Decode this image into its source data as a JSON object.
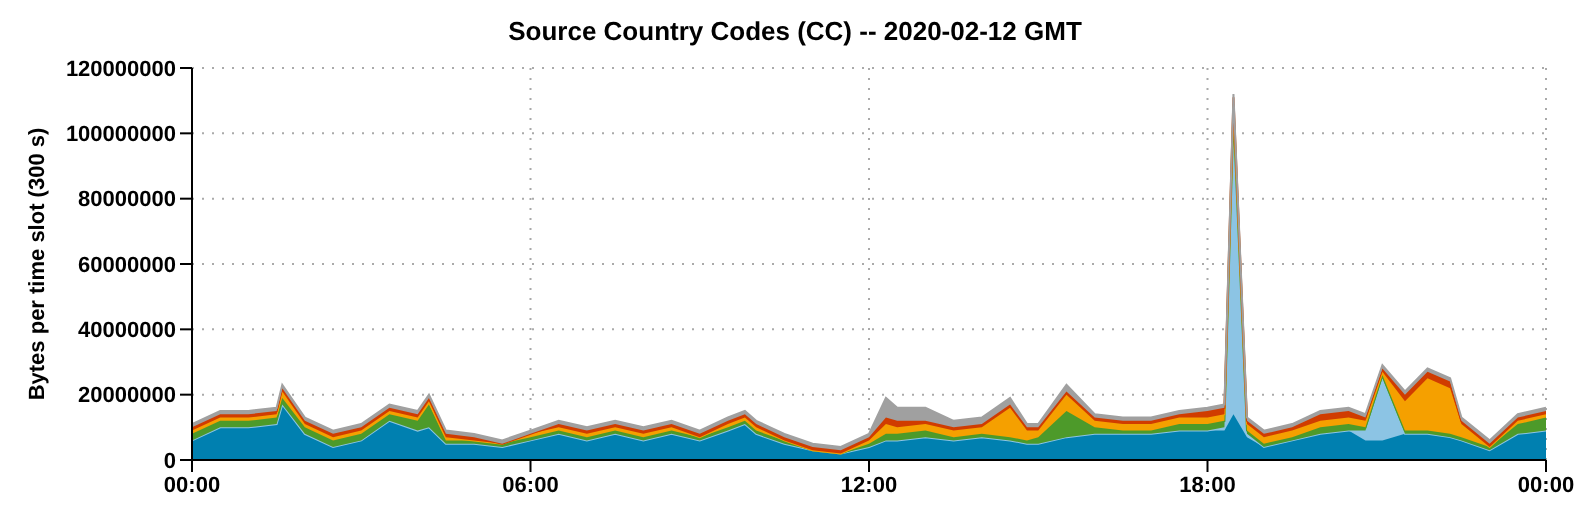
{
  "chart_data": {
    "type": "area",
    "title": "Source Country Codes (CC) -- 2020-02-12 GMT",
    "ylabel": "Bytes per time slot (300 s)",
    "stacked": true,
    "grid": true,
    "x": [
      0,
      0.5,
      1,
      1.5,
      1.6,
      2,
      2.5,
      3,
      3.5,
      4,
      4.2,
      4.5,
      5,
      5.5,
      6,
      6.5,
      7,
      7.5,
      8,
      8.5,
      9,
      9.5,
      9.8,
      10,
      10.5,
      11,
      11.5,
      12,
      12.3,
      12.5,
      13,
      13.5,
      14,
      14.5,
      14.8,
      15,
      15.5,
      16,
      16.5,
      17,
      17.5,
      18,
      18.3,
      18.46,
      18.7,
      19,
      19.5,
      20,
      20.5,
      20.8,
      21.1,
      21.5,
      21.9,
      22.3,
      22.5,
      23,
      23.5,
      24
    ],
    "xlim": [
      0,
      24
    ],
    "xticks": [
      {
        "value": 0,
        "label": "00:00"
      },
      {
        "value": 6,
        "label": "06:00"
      },
      {
        "value": 12,
        "label": "12:00"
      },
      {
        "value": 18,
        "label": "18:00"
      },
      {
        "value": 24,
        "label": "00:00"
      }
    ],
    "ylim": [
      0,
      120000000
    ],
    "yticks": [
      0,
      20000000,
      40000000,
      60000000,
      80000000,
      100000000,
      120000000
    ],
    "series": [
      {
        "color": "#0080b0",
        "values": [
          6000000,
          10000000,
          10000000,
          11000000,
          17000000,
          8000000,
          4000000,
          6000000,
          12000000,
          9000000,
          10000000,
          5000000,
          5000000,
          4000000,
          6000000,
          8000000,
          6000000,
          8000000,
          6000000,
          8000000,
          6000000,
          9000000,
          11000000,
          8000000,
          5000000,
          3000000,
          2000000,
          4000000,
          6000000,
          6000000,
          7000000,
          6000000,
          7000000,
          6000000,
          5000000,
          5000000,
          7000000,
          8000000,
          8000000,
          8000000,
          9000000,
          9000000,
          9000000,
          14000000,
          7000000,
          4000000,
          6000000,
          8000000,
          9000000,
          6000000,
          6000000,
          8000000,
          8000000,
          7000000,
          6000000,
          3000000,
          8000000,
          9000000
        ]
      },
      {
        "color": "#8cc4e4",
        "values": [
          0,
          0,
          0,
          0,
          0,
          0,
          0,
          0,
          0,
          0,
          0,
          0,
          0,
          0,
          0,
          0,
          0,
          0,
          0,
          0,
          0,
          0,
          0,
          0,
          0,
          0,
          0,
          0,
          0,
          0,
          0,
          0,
          0,
          0,
          0,
          0,
          0,
          0,
          0,
          0,
          0,
          0,
          1000000,
          90000000,
          1000000,
          0,
          0,
          0,
          0,
          3000000,
          19000000,
          0,
          0,
          0,
          0,
          0,
          0,
          0
        ]
      },
      {
        "color": "#4d9a2a",
        "values": [
          2000000,
          2000000,
          2000000,
          2000000,
          2000000,
          2000000,
          2000000,
          2000000,
          2000000,
          3000000,
          7000000,
          1000000,
          1000000,
          1000000,
          1000000,
          1000000,
          1000000,
          1000000,
          1000000,
          1000000,
          1000000,
          1000000,
          1000000,
          1000000,
          1000000,
          0,
          0,
          1000000,
          2000000,
          2000000,
          2000000,
          1000000,
          1000000,
          1000000,
          1000000,
          2000000,
          8000000,
          2000000,
          1000000,
          1000000,
          2000000,
          2000000,
          2000000,
          2000000,
          1000000,
          1000000,
          1000000,
          2000000,
          2000000,
          1000000,
          1000000,
          1000000,
          1000000,
          1000000,
          1000000,
          1000000,
          3000000,
          4000000
        ]
      },
      {
        "color": "#f5a000",
        "values": [
          1000000,
          1000000,
          1000000,
          1000000,
          2000000,
          1000000,
          1000000,
          1000000,
          1000000,
          1000000,
          1000000,
          1000000,
          0,
          0,
          1000000,
          1000000,
          1000000,
          1000000,
          1000000,
          1000000,
          0,
          1000000,
          1000000,
          1000000,
          0,
          0,
          0,
          1000000,
          3000000,
          2000000,
          2000000,
          2000000,
          2000000,
          9000000,
          3000000,
          2000000,
          5000000,
          2000000,
          2000000,
          2000000,
          2000000,
          2000000,
          2000000,
          3000000,
          2000000,
          2000000,
          2000000,
          2000000,
          2000000,
          2000000,
          1000000,
          9000000,
          16000000,
          14000000,
          4000000,
          0,
          1000000,
          1000000
        ]
      },
      {
        "color": "#d03c00",
        "values": [
          1000000,
          1000000,
          1000000,
          1000000,
          1000000,
          1000000,
          1000000,
          1000000,
          1000000,
          1000000,
          1000000,
          1000000,
          1000000,
          0,
          0,
          1000000,
          1000000,
          1000000,
          1000000,
          1000000,
          1000000,
          1000000,
          1000000,
          1000000,
          1000000,
          1000000,
          1000000,
          1000000,
          2000000,
          2000000,
          1000000,
          1000000,
          1000000,
          1000000,
          1000000,
          1000000,
          1000000,
          1000000,
          1000000,
          1000000,
          1000000,
          2000000,
          2000000,
          2000000,
          1000000,
          1000000,
          1000000,
          2000000,
          2000000,
          1000000,
          1000000,
          2000000,
          2000000,
          2000000,
          1000000,
          1000000,
          1000000,
          1000000
        ]
      },
      {
        "color": "#a0a0a0",
        "values": [
          1000000,
          1000000,
          1000000,
          1000000,
          1000000,
          1000000,
          1000000,
          1000000,
          1000000,
          1000000,
          1000000,
          1000000,
          1000000,
          1000000,
          1000000,
          1000000,
          1000000,
          1000000,
          1000000,
          1000000,
          1000000,
          1000000,
          1000000,
          1000000,
          1000000,
          1000000,
          1000000,
          1000000,
          6000000,
          4000000,
          4000000,
          2000000,
          2000000,
          2000000,
          1000000,
          1000000,
          2000000,
          1000000,
          1000000,
          1000000,
          1000000,
          1000000,
          1000000,
          1000000,
          1000000,
          1000000,
          1000000,
          1000000,
          1000000,
          1000000,
          1000000,
          1000000,
          1000000,
          1000000,
          1000000,
          1000000,
          1000000,
          1000000
        ]
      }
    ]
  }
}
